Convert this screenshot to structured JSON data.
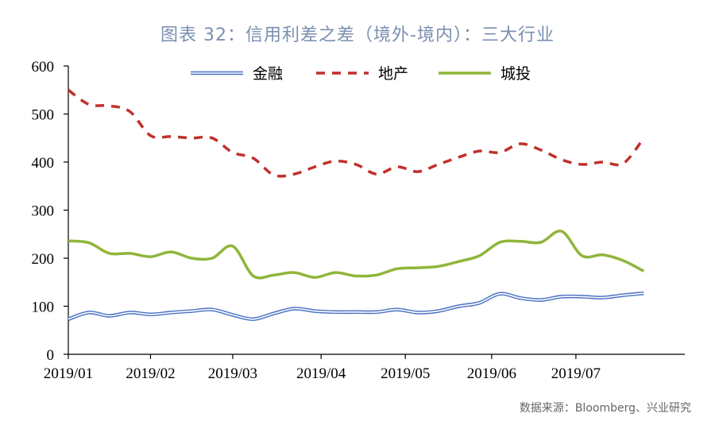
{
  "title": "图表 32：信用利差之差（境外-境内）：三大行业",
  "source": "数据来源：Bloomberg、兴业研究",
  "chart_data": {
    "type": "line",
    "title": "图表 32：信用利差之差（境外-境内）：三大行业",
    "xlabel": "",
    "ylabel": "",
    "ylim": [
      0,
      600
    ],
    "yticks": [
      0,
      100,
      200,
      300,
      400,
      500,
      600
    ],
    "xlim": [
      0,
      30
    ],
    "x_ticks": [
      {
        "x": 0,
        "label": "2019/01"
      },
      {
        "x": 4,
        "label": "2019/02"
      },
      {
        "x": 8,
        "label": "2019/03"
      },
      {
        "x": 12.3,
        "label": "2019/04"
      },
      {
        "x": 16.4,
        "label": "2019/05"
      },
      {
        "x": 20.6,
        "label": "2019/06"
      },
      {
        "x": 24.7,
        "label": "2019/07"
      }
    ],
    "x": [
      0,
      1,
      2,
      3,
      4,
      5,
      6,
      7,
      8,
      9,
      10,
      11,
      12,
      13,
      14,
      15,
      16,
      17,
      18,
      19,
      20,
      21,
      22,
      23,
      24,
      25,
      26,
      27,
      28
    ],
    "series": [
      {
        "name": "金融",
        "style": "double-line",
        "color": "#4a72c4",
        "values": [
          73,
          87,
          80,
          87,
          83,
          87,
          90,
          93,
          82,
          73,
          85,
          95,
          90,
          88,
          88,
          88,
          93,
          87,
          90,
          100,
          107,
          126,
          117,
          113,
          120,
          120,
          118,
          123,
          127
        ]
      },
      {
        "name": "地产",
        "style": "dashed",
        "color": "#c0302b",
        "values": [
          550,
          520,
          517,
          505,
          455,
          453,
          450,
          450,
          420,
          408,
          373,
          375,
          390,
          402,
          395,
          375,
          390,
          380,
          395,
          410,
          423,
          420,
          438,
          425,
          405,
          395,
          400,
          397,
          450
        ]
      },
      {
        "name": "城投",
        "style": "solid",
        "color": "#8fb53a",
        "values": [
          236,
          232,
          210,
          210,
          203,
          213,
          200,
          200,
          225,
          163,
          165,
          170,
          160,
          170,
          163,
          165,
          178,
          180,
          183,
          193,
          205,
          233,
          235,
          233,
          256,
          205,
          207,
          195,
          173
        ]
      }
    ],
    "legend": {
      "position": "top-center"
    },
    "grid": false
  }
}
